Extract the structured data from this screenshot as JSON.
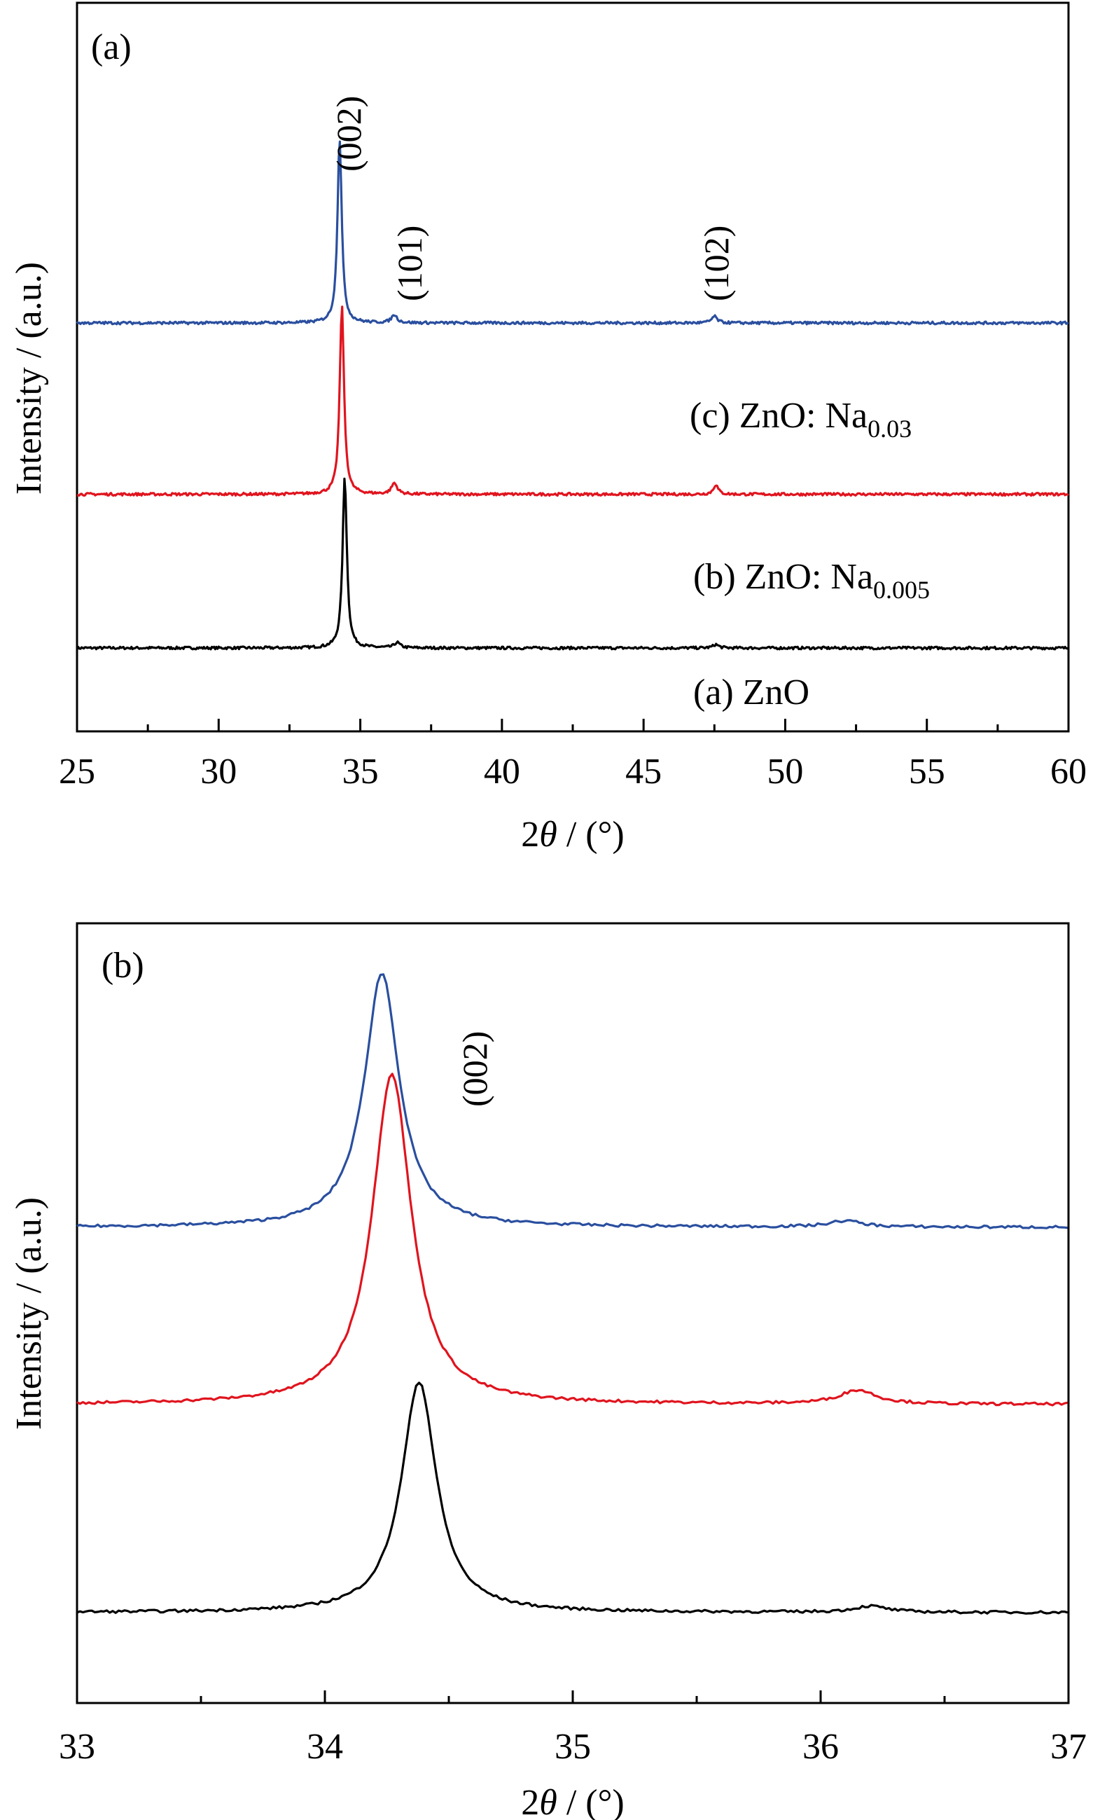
{
  "colors": {
    "zno": "#000000",
    "na_0005": "#e0141e",
    "na_003": "#2a4f9f"
  },
  "chart_data": [
    {
      "type": "line",
      "panel_label": "(a)",
      "xlabel_prefix": "2",
      "xlabel_theta": "θ",
      "xlabel_suffix": " / (°)",
      "ylabel": "Intensity / (a.u.)",
      "xlim": [
        25,
        60
      ],
      "x_ticks": [
        "25",
        "30",
        "35",
        "40",
        "45",
        "50",
        "55",
        "60"
      ],
      "y_ticks": "none",
      "grid": false,
      "peak_labels": [
        {
          "text": "(002)",
          "x": 34.4
        },
        {
          "text": "(101)",
          "x": 36.3
        },
        {
          "text": "(102)",
          "x": 47.5
        }
      ],
      "series": [
        {
          "name": "(a) ZnO",
          "color_key": "zno",
          "baseline": 0.0,
          "peaks": [
            {
              "x": 34.45,
              "height": 3.9,
              "width": 0.09
            },
            {
              "x": 36.3,
              "height": 0.12,
              "width": 0.12
            },
            {
              "x": 47.55,
              "height": 0.08,
              "width": 0.12
            }
          ]
        },
        {
          "name": "(b) ZnO: Na",
          "name_main": "(b) ZnO: Na",
          "name_sub": "0.005",
          "color_key": "na_0005",
          "baseline": 3.5,
          "peaks": [
            {
              "x": 34.35,
              "height": 4.3,
              "width": 0.09
            },
            {
              "x": 36.2,
              "height": 0.25,
              "width": 0.12
            },
            {
              "x": 47.55,
              "height": 0.22,
              "width": 0.1
            }
          ]
        },
        {
          "name": "(c) ZnO: Na",
          "name_main": "(c) ZnO: Na",
          "name_sub": "0.03",
          "color_key": "na_003",
          "baseline": 7.4,
          "peaks": [
            {
              "x": 34.27,
              "height": 4.2,
              "width": 0.09
            },
            {
              "x": 36.2,
              "height": 0.18,
              "width": 0.12
            },
            {
              "x": 47.5,
              "height": 0.15,
              "width": 0.12
            }
          ]
        }
      ]
    },
    {
      "type": "line",
      "panel_label": "(b)",
      "xlabel_prefix": "2",
      "xlabel_theta": "θ",
      "xlabel_suffix": " / (°)",
      "ylabel": "Intensity / (a.u.)",
      "xlim": [
        33,
        37
      ],
      "x_ticks": [
        "33",
        "34",
        "35",
        "36",
        "37"
      ],
      "y_ticks": "none",
      "grid": false,
      "peak_labels": [
        {
          "text": "(002)",
          "x": 34.62
        }
      ],
      "series": [
        {
          "name": "(a) ZnO",
          "color_key": "zno",
          "baseline": 0.0,
          "peaks": [
            {
              "x": 34.38,
              "height": 3.0,
              "width": 0.085
            },
            {
              "x": 36.2,
              "height": 0.08,
              "width": 0.08
            }
          ]
        },
        {
          "name": "(b) ZnO: Na0.005",
          "color_key": "na_0005",
          "baseline": 2.7,
          "peaks": [
            {
              "x": 34.27,
              "height": 4.3,
              "width": 0.095
            },
            {
              "x": 36.15,
              "height": 0.18,
              "width": 0.09
            }
          ]
        },
        {
          "name": "(c) ZnO: Na0.03",
          "color_key": "na_003",
          "baseline": 5.0,
          "peaks": [
            {
              "x": 34.23,
              "height": 3.3,
              "width": 0.085
            },
            {
              "x": 36.1,
              "height": 0.08,
              "width": 0.08
            }
          ]
        }
      ]
    }
  ]
}
